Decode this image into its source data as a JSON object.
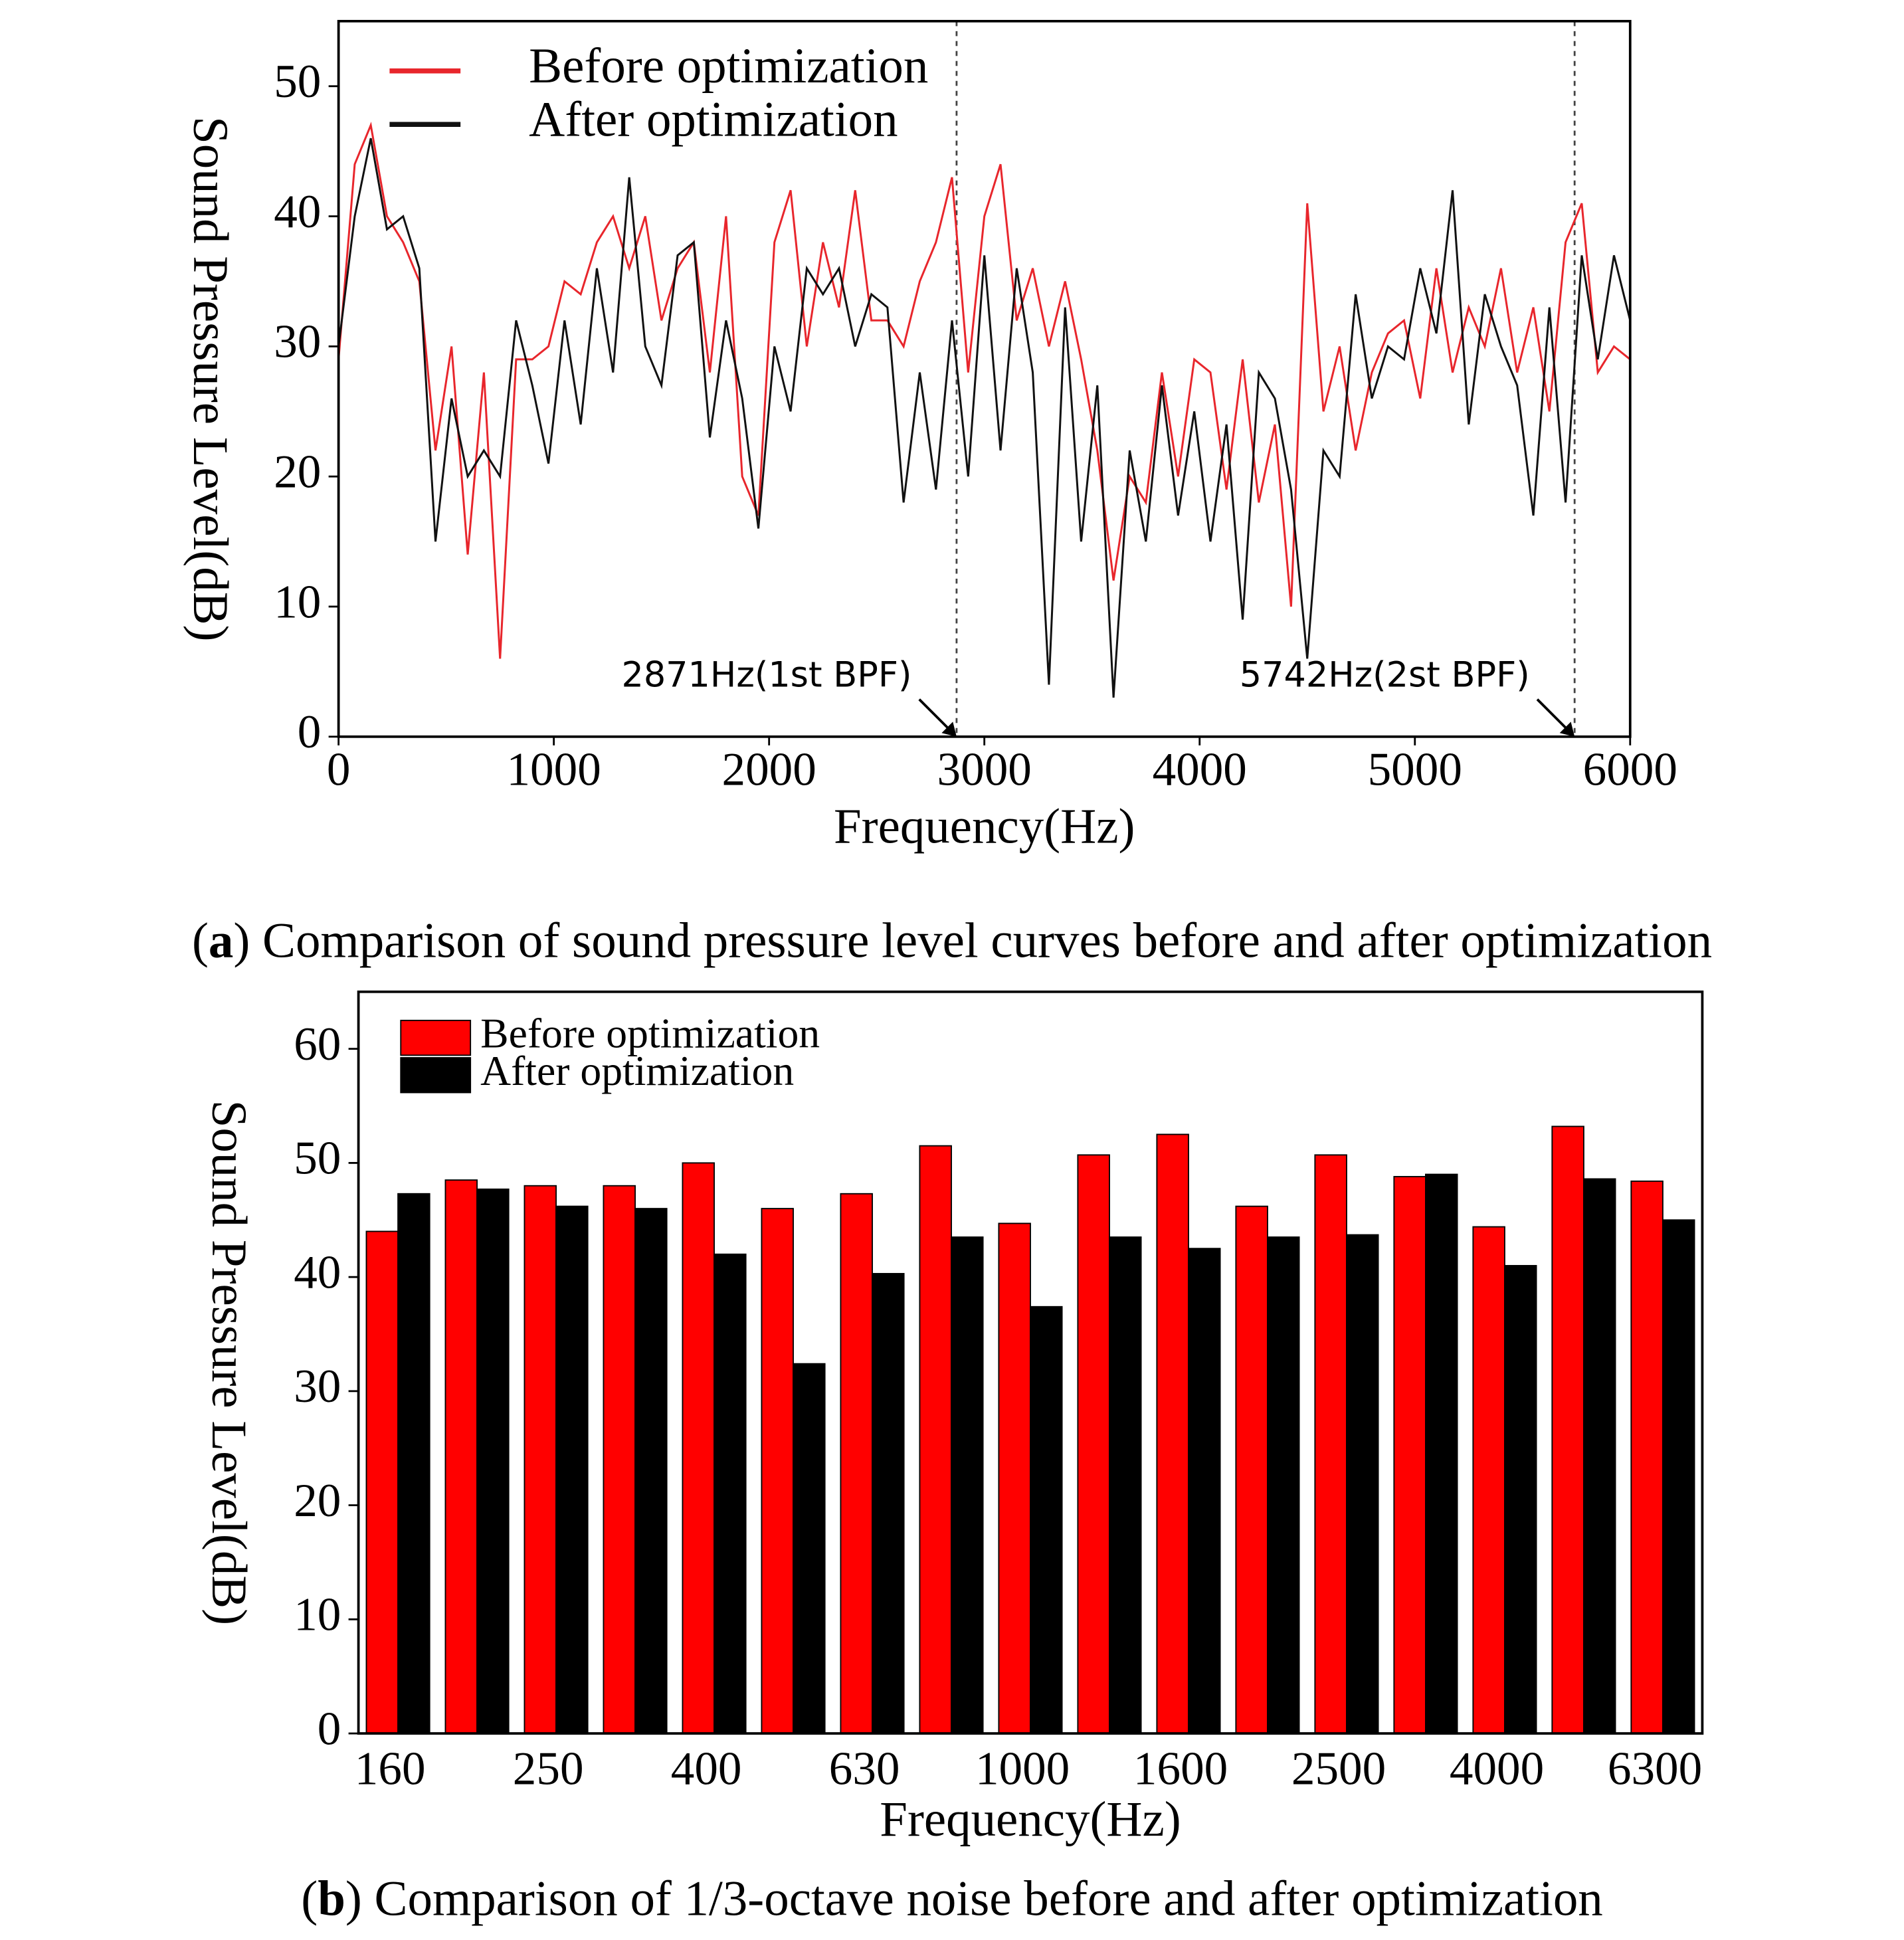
{
  "chart_data": [
    {
      "type": "line",
      "caption": [
        "(",
        "a",
        ") Comparison of sound pressure level curves before and after optimization"
      ],
      "xlabel": "Frequency(Hz)",
      "ylabel": "Sound Pressure Level(dB)",
      "xlim": [
        0,
        6000
      ],
      "xticks": [
        0,
        1000,
        2000,
        3000,
        4000,
        5000,
        6000
      ],
      "ylim": [
        0,
        55
      ],
      "yticks": [
        0,
        10,
        20,
        30,
        40,
        50
      ],
      "legend": "upper left",
      "annotations": [
        {
          "x": 2871,
          "text": "2871Hz(1st BPF)"
        },
        {
          "x": 5742,
          "text": "5742Hz(2st BPF)"
        }
      ],
      "x": [
        0,
        75,
        150,
        225,
        300,
        375,
        450,
        525,
        600,
        675,
        750,
        825,
        900,
        975,
        1050,
        1125,
        1200,
        1275,
        1350,
        1425,
        1500,
        1575,
        1650,
        1725,
        1800,
        1875,
        1950,
        2025,
        2100,
        2175,
        2250,
        2325,
        2400,
        2475,
        2550,
        2625,
        2700,
        2775,
        2850,
        2925,
        3000,
        3075,
        3150,
        3225,
        3300,
        3375,
        3450,
        3525,
        3600,
        3675,
        3750,
        3825,
        3900,
        3975,
        4050,
        4125,
        4200,
        4275,
        4350,
        4425,
        4500,
        4575,
        4650,
        4725,
        4800,
        4875,
        4950,
        5025,
        5100,
        5175,
        5250,
        5325,
        5400,
        5475,
        5550,
        5625,
        5700,
        5775,
        5850,
        5925,
        6000
      ],
      "series": [
        {
          "name": "Before optimization",
          "color": "#e8262c",
          "values": [
            29,
            44,
            47,
            40,
            38,
            35,
            22,
            30,
            14,
            28,
            6,
            29,
            29,
            30,
            35,
            34,
            38,
            40,
            36,
            40,
            32,
            36,
            38,
            28,
            40,
            20,
            17,
            38,
            42,
            30,
            38,
            33,
            42,
            32,
            32,
            30,
            35,
            38,
            43,
            28,
            40,
            44,
            32,
            36,
            30,
            35,
            29,
            22,
            12,
            20,
            18,
            28,
            20,
            29,
            28,
            19,
            29,
            18,
            24,
            10,
            41,
            25,
            30,
            22,
            28,
            31,
            32,
            26,
            36,
            28,
            33,
            30,
            36,
            28,
            33,
            25,
            38,
            41,
            28,
            30,
            29
          ]
        },
        {
          "name": "After optimization",
          "color": "#111111",
          "values": [
            30,
            40,
            46,
            39,
            40,
            36,
            15,
            26,
            20,
            22,
            20,
            32,
            27,
            21,
            32,
            24,
            36,
            28,
            43,
            30,
            27,
            37,
            38,
            23,
            32,
            26,
            16,
            30,
            25,
            36,
            34,
            36,
            30,
            34,
            33,
            18,
            28,
            19,
            32,
            20,
            37,
            22,
            36,
            28,
            4,
            33,
            15,
            27,
            3,
            22,
            15,
            27,
            17,
            25,
            15,
            24,
            9,
            28,
            26,
            19,
            6,
            22,
            20,
            34,
            26,
            30,
            29,
            36,
            31,
            42,
            24,
            34,
            30,
            27,
            17,
            33,
            18,
            37,
            29,
            37,
            32
          ]
        }
      ]
    },
    {
      "type": "bar",
      "caption": [
        "(",
        "b",
        ") Comparison of 1/3-octave noise before and after optimization"
      ],
      "xlabel": "Frequency(Hz)",
      "ylabel": "Sound Pressure Level(dB)",
      "ylim": [
        0,
        65
      ],
      "yticks": [
        0,
        10,
        20,
        30,
        40,
        50,
        60
      ],
      "legend": "upper left",
      "categories": [
        "160",
        null,
        "250",
        null,
        "400",
        null,
        "630",
        null,
        "1000",
        null,
        "1600",
        null,
        "2500",
        null,
        "4000",
        null,
        "6300"
      ],
      "series": [
        {
          "name": "Before optimization",
          "color": "#ff0000",
          "values": [
            44,
            48.5,
            48,
            48,
            50,
            46,
            47.3,
            51.5,
            44.7,
            50.7,
            52.5,
            46.2,
            50.7,
            48.8,
            44.4,
            53.2,
            48.4
          ]
        },
        {
          "name": "After optimization",
          "color": "#000000",
          "values": [
            47.3,
            47.7,
            46.2,
            46,
            42,
            32.4,
            40.3,
            43.5,
            37.4,
            43.5,
            42.5,
            43.5,
            43.7,
            49,
            41,
            48.6,
            45
          ]
        }
      ]
    }
  ]
}
